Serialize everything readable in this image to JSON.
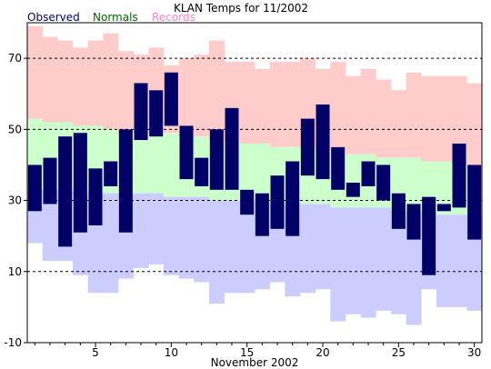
{
  "chart_data": {
    "type": "bar",
    "title": "KLAN Temps for 11/2002",
    "xlabel": "November 2002",
    "ylabel": "",
    "ylim": [
      -10,
      80
    ],
    "yticks": [
      -10,
      10,
      30,
      50,
      70
    ],
    "xticks": [
      5,
      10,
      15,
      20,
      25,
      30
    ],
    "grid": "dashed-horizontal",
    "legend": [
      {
        "name": "Observed",
        "color": "#000066"
      },
      {
        "name": "Normals",
        "color": "#006600"
      },
      {
        "name": "Records",
        "color": "#ff88cc"
      }
    ],
    "days": [
      1,
      2,
      3,
      4,
      5,
      6,
      7,
      8,
      9,
      10,
      11,
      12,
      13,
      14,
      15,
      16,
      17,
      18,
      19,
      20,
      21,
      22,
      23,
      24,
      25,
      26,
      27,
      28,
      29,
      30
    ],
    "series": [
      {
        "name": "Observed",
        "high": [
          40,
          42,
          48,
          49,
          39,
          41,
          50,
          63,
          61,
          66,
          51,
          42,
          50,
          56,
          33,
          32,
          37,
          41,
          53,
          57,
          45,
          35,
          41,
          40,
          32,
          29,
          31,
          29,
          46,
          40
        ],
        "low": [
          27,
          29,
          17,
          21,
          23,
          34,
          21,
          47,
          48,
          51,
          36,
          34,
          33,
          33,
          26,
          20,
          22,
          20,
          37,
          36,
          33,
          31,
          34,
          30,
          22,
          19,
          9,
          27,
          28,
          19
        ]
      },
      {
        "name": "Normals",
        "high": [
          53,
          52,
          52,
          51,
          51,
          50,
          49,
          49,
          49,
          49,
          48,
          48,
          47,
          47,
          46,
          46,
          45,
          45,
          45,
          44,
          44,
          43,
          43,
          42,
          42,
          42,
          41,
          41,
          40,
          40
        ],
        "low": [
          33,
          33,
          33,
          33,
          32,
          32,
          32,
          32,
          32,
          31,
          31,
          31,
          30,
          30,
          30,
          30,
          29,
          29,
          29,
          29,
          28,
          28,
          28,
          28,
          27,
          27,
          27,
          26,
          26,
          26
        ]
      },
      {
        "name": "Records",
        "high": [
          79,
          76,
          75,
          73,
          75,
          77,
          72,
          71,
          73,
          68,
          70,
          71,
          75,
          69,
          69,
          67,
          69,
          69,
          70,
          67,
          69,
          65,
          67,
          64,
          61,
          66,
          65,
          65,
          65,
          63
        ],
        "low": [
          18,
          13,
          13,
          9,
          4,
          4,
          8,
          11,
          12,
          9,
          8,
          7,
          1,
          4,
          4,
          5,
          7,
          3,
          4,
          5,
          -4,
          -2,
          -3,
          -1,
          -2,
          -5,
          5,
          0,
          0,
          -1
        ]
      }
    ],
    "colors": {
      "observed_bar": "#000066",
      "normals_band": "#ccffcc",
      "record_high_band": "#ffcccc",
      "record_low_band": "#ccccff",
      "title_observed": "#000066",
      "title_normals": "#006600",
      "title_records": "#ff88cc",
      "grid": "#000000"
    }
  }
}
